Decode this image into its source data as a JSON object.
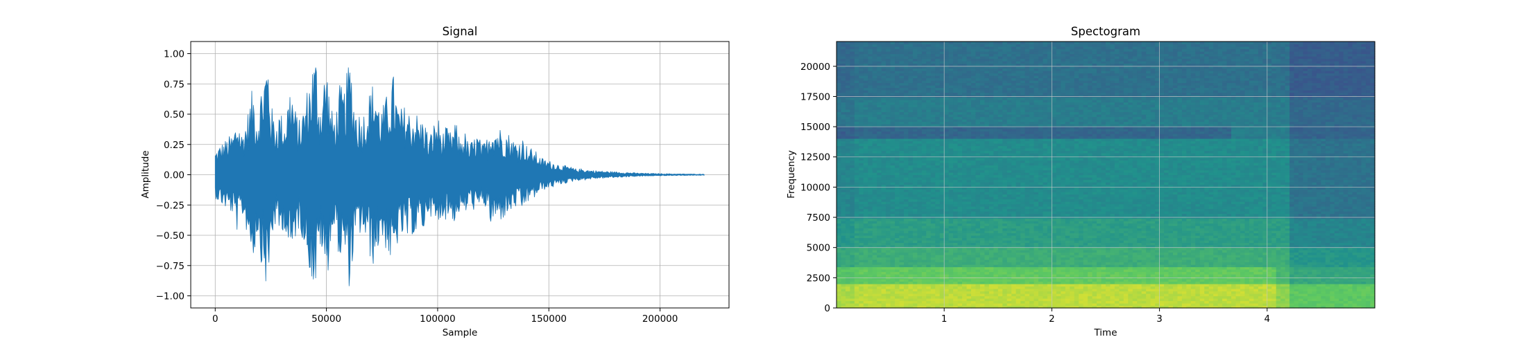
{
  "chart_data": [
    {
      "type": "line",
      "title": "Signal",
      "xlabel": "Sample",
      "ylabel": "Amplitude",
      "xlim": [
        -11000,
        231000
      ],
      "ylim": [
        -1.1,
        1.1
      ],
      "xticks": [
        0,
        50000,
        100000,
        150000,
        200000
      ],
      "xtick_labels": [
        "0",
        "50000",
        "100000",
        "150000",
        "200000"
      ],
      "yticks": [
        -1.0,
        -0.75,
        -0.5,
        -0.25,
        0.0,
        0.25,
        0.5,
        0.75,
        1.0
      ],
      "ytick_labels": [
        "−1.00",
        "−0.75",
        "−0.50",
        "−0.25",
        "0.00",
        "0.25",
        "0.50",
        "0.75",
        "1.00"
      ],
      "grid": true,
      "color": "#1f77b4",
      "series": [
        {
          "x": [
            0,
            2000,
            5000,
            8000,
            10000,
            12000,
            15000,
            17000,
            19000,
            21000,
            23000,
            24000,
            25000,
            27000,
            29000,
            31000,
            34000,
            36000,
            38000,
            40000,
            42000,
            44000,
            45500,
            47000,
            48500,
            50000,
            52000,
            54000,
            56000,
            58000,
            60000,
            61000,
            62000,
            63000,
            64000,
            66000,
            68000,
            70000,
            72000,
            74000,
            76000,
            78000,
            80000,
            82000,
            84000,
            86000,
            88000,
            90000,
            92000,
            94000,
            96000,
            98000,
            100000,
            102000,
            104000,
            106000,
            108000,
            110000,
            112000,
            114000,
            116000,
            118000,
            120000,
            122000,
            124000,
            126000,
            128000,
            130000,
            132000,
            134000,
            136000,
            138000,
            140000,
            142000,
            144000,
            146000,
            148000,
            150000,
            153000,
            156000,
            159000,
            162000,
            165000,
            168000,
            171000,
            175000,
            180000,
            185000,
            190000,
            195000,
            200000,
            205000,
            210000,
            215000,
            220000
          ],
          "amplitude": [
            0.2,
            0.25,
            0.3,
            0.35,
            0.5,
            0.35,
            0.55,
            0.75,
            0.5,
            0.8,
            0.98,
            1.0,
            0.6,
            0.45,
            0.55,
            0.45,
            0.8,
            0.55,
            0.45,
            0.6,
            0.78,
            0.98,
            1.0,
            0.6,
            0.78,
            0.98,
            0.55,
            0.5,
            0.75,
            0.7,
            0.95,
            1.0,
            0.7,
            0.6,
            0.55,
            0.5,
            0.6,
            0.75,
            0.8,
            0.55,
            0.6,
            0.72,
            0.85,
            0.6,
            0.55,
            0.6,
            0.5,
            0.55,
            0.45,
            0.5,
            0.3,
            0.42,
            0.5,
            0.35,
            0.4,
            0.35,
            0.45,
            0.3,
            0.38,
            0.25,
            0.3,
            0.35,
            0.25,
            0.3,
            0.45,
            0.42,
            0.4,
            0.38,
            0.35,
            0.3,
            0.28,
            0.32,
            0.25,
            0.22,
            0.2,
            0.15,
            0.13,
            0.12,
            0.1,
            0.08,
            0.07,
            0.05,
            0.05,
            0.04,
            0.035,
            0.03,
            0.025,
            0.02,
            0.015,
            0.012,
            0.01,
            0.008,
            0.007,
            0.006,
            0.005
          ]
        }
      ]
    },
    {
      "type": "heatmap",
      "title": "Spectogram",
      "xlabel": "Time",
      "ylabel": "Frequency",
      "xlim": [
        0,
        5.0
      ],
      "ylim": [
        0,
        22050
      ],
      "xticks": [
        1,
        2,
        3,
        4
      ],
      "xtick_labels": [
        "1",
        "2",
        "3",
        "4"
      ],
      "yticks": [
        0,
        2500,
        5000,
        7500,
        10000,
        12500,
        15000,
        17500,
        20000
      ],
      "ytick_labels": [
        "0",
        "2500",
        "5000",
        "7500",
        "10000",
        "12500",
        "15000",
        "17500",
        "20000"
      ],
      "grid": true,
      "colormap": "viridis",
      "colormap_stops": [
        "#440154",
        "#3b528b",
        "#21918c",
        "#5ec962",
        "#fde725"
      ],
      "frequency_bands": [
        {
          "from": 0,
          "to": 2000,
          "level": 0.9
        },
        {
          "from": 2000,
          "to": 3500,
          "level": 0.75
        },
        {
          "from": 3500,
          "to": 5000,
          "level": 0.62
        },
        {
          "from": 5000,
          "to": 7500,
          "level": 0.55
        },
        {
          "from": 7500,
          "to": 14000,
          "level": 0.48
        },
        {
          "from": 14000,
          "to": 15000,
          "level": 0.33
        },
        {
          "from": 15000,
          "to": 17500,
          "level": 0.42
        },
        {
          "from": 17500,
          "to": 22050,
          "level": 0.37
        }
      ]
    }
  ]
}
